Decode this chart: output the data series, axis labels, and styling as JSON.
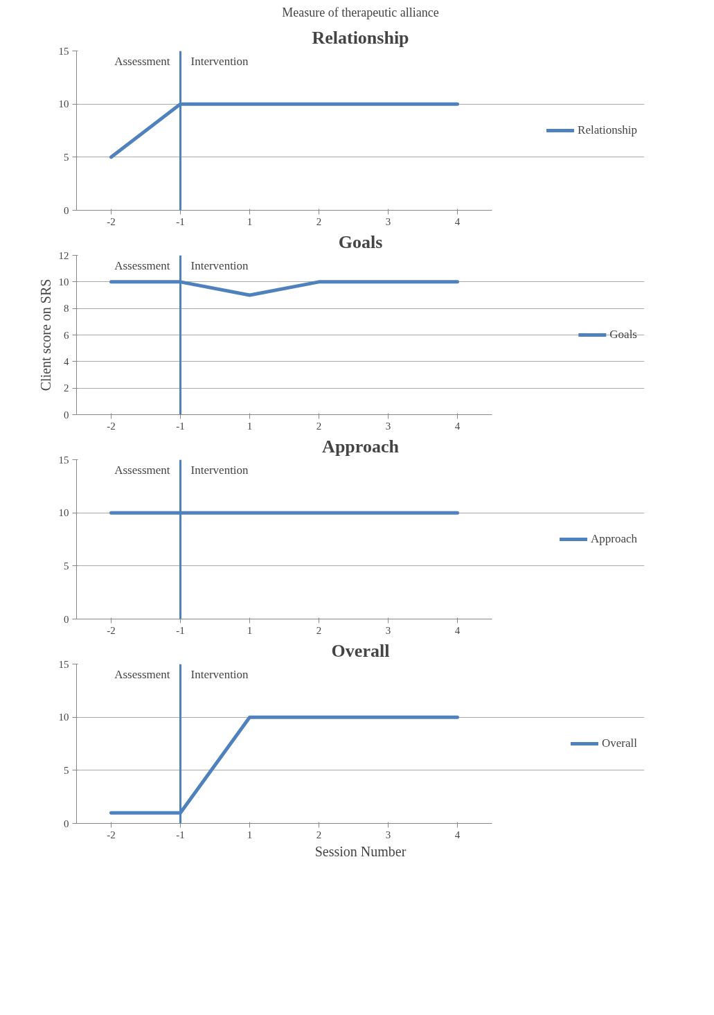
{
  "chart_data": [
    {
      "type": "line",
      "title": "Measure of therapeutic alliance",
      "subtitle": "Relationship",
      "categories": [
        "-2",
        "-1",
        "1",
        "2",
        "3",
        "4"
      ],
      "series": [
        {
          "name": "Relationship",
          "color": "#4f81bd",
          "values": [
            5,
            10,
            10,
            10,
            10,
            10
          ]
        }
      ],
      "ylim": [
        0,
        15
      ],
      "yticks": [
        0,
        5,
        10,
        15
      ],
      "grid": "y",
      "legend": "right",
      "marker": "none",
      "line_style": "solid",
      "ref_lines": [
        {
          "axis": "x",
          "value": "-1",
          "color": "#4f81bd"
        }
      ],
      "annotations": [
        "Assessment",
        "Intervention"
      ]
    },
    {
      "type": "line",
      "title": "Goals",
      "ylabel": "Client score on SRS",
      "categories": [
        "-2",
        "-1",
        "1",
        "2",
        "3",
        "4"
      ],
      "series": [
        {
          "name": "Goals",
          "color": "#4f81bd",
          "values": [
            10,
            10,
            9,
            10,
            10,
            10
          ]
        }
      ],
      "ylim": [
        0,
        12
      ],
      "yticks": [
        0,
        2,
        4,
        6,
        8,
        10,
        12
      ],
      "grid": "y",
      "legend": "right",
      "marker": "none",
      "line_style": "solid",
      "ref_lines": [
        {
          "axis": "x",
          "value": "-1",
          "color": "#4f81bd"
        }
      ],
      "annotations": [
        "Assessment",
        "Intervention"
      ]
    },
    {
      "type": "line",
      "title": "Approach",
      "categories": [
        "-2",
        "-1",
        "1",
        "2",
        "3",
        "4"
      ],
      "series": [
        {
          "name": "Approach",
          "color": "#4f81bd",
          "values": [
            10,
            10,
            10,
            10,
            10,
            10
          ]
        }
      ],
      "ylim": [
        0,
        15
      ],
      "yticks": [
        0,
        5,
        10,
        15
      ],
      "grid": "y",
      "legend": "right",
      "marker": "none",
      "line_style": "solid",
      "ref_lines": [
        {
          "axis": "x",
          "value": "-1",
          "color": "#4f81bd"
        }
      ],
      "annotations": [
        "Assessment",
        "Intervention"
      ]
    },
    {
      "type": "line",
      "title": "Overall",
      "xlabel": "Session Number",
      "categories": [
        "-2",
        "-1",
        "1",
        "2",
        "3",
        "4"
      ],
      "series": [
        {
          "name": "Overall",
          "color": "#4f81bd",
          "values": [
            1,
            1,
            10,
            10,
            10,
            10
          ]
        }
      ],
      "ylim": [
        0,
        15
      ],
      "yticks": [
        0,
        5,
        10,
        15
      ],
      "grid": "y",
      "legend": "right",
      "marker": "none",
      "line_style": "solid",
      "ref_lines": [
        {
          "axis": "x",
          "value": "-1",
          "color": "#4f81bd"
        }
      ],
      "annotations": [
        "Assessment",
        "Intervention"
      ]
    }
  ]
}
